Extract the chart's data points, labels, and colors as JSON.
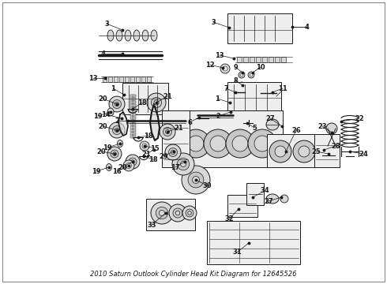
{
  "title": "2010 Saturn Outlook Cylinder Head Kit Diagram for 12645526",
  "bg": "#ffffff",
  "fg": "#1a1a1a",
  "label_fs": 6,
  "title_fs": 6,
  "border_color": "#888888",
  "gray_fill": "#d8d8d8",
  "light_fill": "#eeeeee",
  "mid_fill": "#c8c8c8"
}
